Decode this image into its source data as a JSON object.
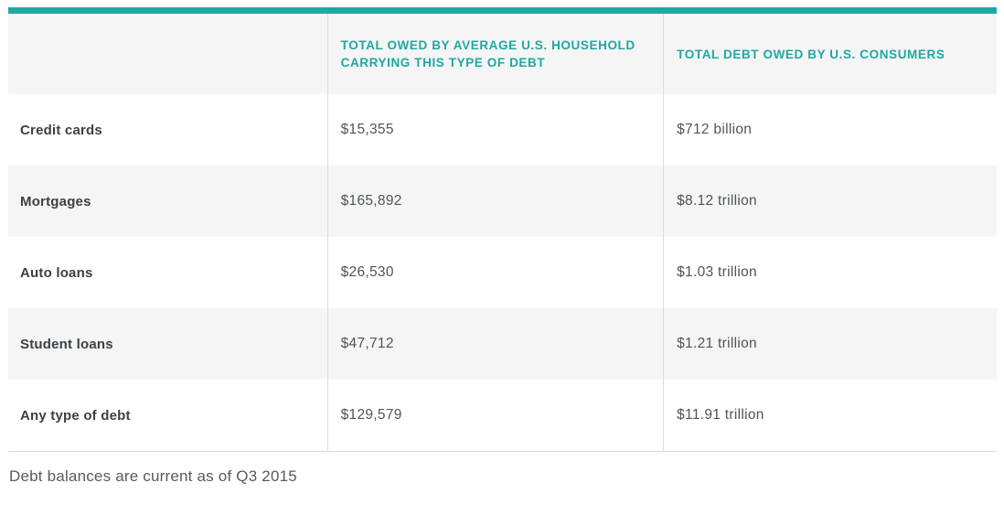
{
  "colors": {
    "accent": "#1FA8A2",
    "stripe": "#F5F5F5",
    "divider": "#DCDCDC",
    "label_text": "#3B4045",
    "value_text": "#4F5459",
    "note_text": "#565B60"
  },
  "chart_data": {
    "type": "table",
    "columns": [
      "",
      "TOTAL OWED BY AVERAGE U.S. HOUSEHOLD CARRYING THIS TYPE OF DEBT",
      "TOTAL DEBT OWED BY U.S. CONSUMERS"
    ],
    "rows": [
      {
        "label": "Credit cards",
        "avg_household": "$15,355",
        "total_consumers": "$712 billion"
      },
      {
        "label": "Mortgages",
        "avg_household": "$165,892",
        "total_consumers": "$8.12 trillion"
      },
      {
        "label": "Auto loans",
        "avg_household": "$26,530",
        "total_consumers": "$1.03 trillion"
      },
      {
        "label": "Student loans",
        "avg_household": "$47,712",
        "total_consumers": "$1.21 trillion"
      },
      {
        "label": "Any type of debt",
        "avg_household": "$129,579",
        "total_consumers": "$11.91 trillion"
      }
    ],
    "note": "Debt balances are current as of Q3 2015"
  }
}
